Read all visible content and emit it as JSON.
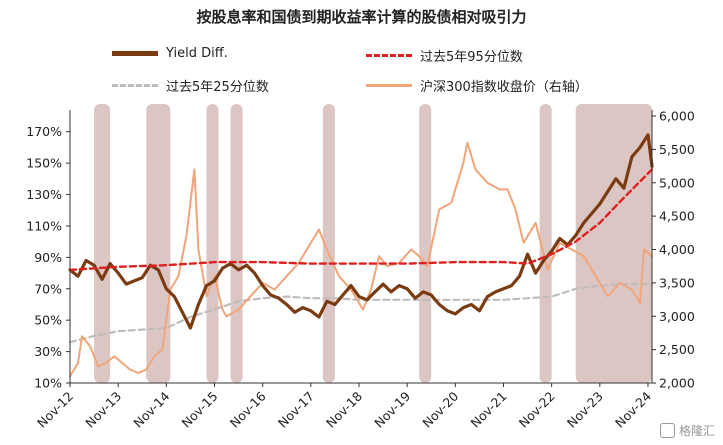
{
  "colors": {
    "yield_diff": "#7b3b12",
    "p95": "#e02020",
    "p25": "#c0bcbc",
    "csi300": "#f0a57a",
    "shade": "#dcc6c4",
    "text": "#222222"
  },
  "watermark": "格隆汇",
  "chart_data": {
    "type": "line",
    "title": "按股息率和国债到期收益率计算的股债相对吸引力",
    "xlabel": "",
    "ylabel": "",
    "ylabel_right": "",
    "x_tick_labels": [
      "Nov-12",
      "Nov-13",
      "Nov-14",
      "Nov-15",
      "Nov-16",
      "Nov-17",
      "Nov-18",
      "Nov-19",
      "Nov-20",
      "Nov-21",
      "Nov-22",
      "Nov-23",
      "Nov-24"
    ],
    "x_range": [
      "2012-11",
      "2024-12"
    ],
    "y_left_ticks": [
      "10%",
      "30%",
      "50%",
      "70%",
      "90%",
      "110%",
      "130%",
      "150%",
      "170%"
    ],
    "y_left_range": [
      10,
      180
    ],
    "y_right_ticks": [
      "2,000",
      "2,500",
      "3,000",
      "3,500",
      "4,000",
      "4,500",
      "5,000",
      "5,500",
      "6,000"
    ],
    "y_right_range": [
      2000,
      6000
    ],
    "grid": false,
    "legend_position": "top",
    "shaded_periods": [
      [
        "2013-05",
        "2013-09"
      ],
      [
        "2014-06",
        "2014-12"
      ],
      [
        "2015-09",
        "2015-12"
      ],
      [
        "2016-03",
        "2016-06"
      ],
      [
        "2018-02",
        "2018-05"
      ],
      [
        "2020-02",
        "2020-05"
      ],
      [
        "2022-08",
        "2022-11"
      ],
      [
        "2023-05",
        "2024-12"
      ]
    ],
    "series": [
      {
        "name": "Yield Diff.",
        "axis": "left",
        "dates": [
          "2012-11",
          "2013-01",
          "2013-03",
          "2013-05",
          "2013-07",
          "2013-09",
          "2013-11",
          "2014-01",
          "2014-03",
          "2014-05",
          "2014-07",
          "2014-09",
          "2014-11",
          "2015-01",
          "2015-03",
          "2015-05",
          "2015-07",
          "2015-09",
          "2015-11",
          "2016-01",
          "2016-03",
          "2016-05",
          "2016-07",
          "2016-09",
          "2016-11",
          "2017-01",
          "2017-03",
          "2017-05",
          "2017-07",
          "2017-09",
          "2017-11",
          "2018-01",
          "2018-03",
          "2018-05",
          "2018-07",
          "2018-09",
          "2018-11",
          "2019-01",
          "2019-03",
          "2019-05",
          "2019-07",
          "2019-09",
          "2019-11",
          "2020-01",
          "2020-03",
          "2020-05",
          "2020-07",
          "2020-09",
          "2020-11",
          "2021-01",
          "2021-03",
          "2021-05",
          "2021-07",
          "2021-09",
          "2021-11",
          "2022-01",
          "2022-03",
          "2022-05",
          "2022-07",
          "2022-09",
          "2022-11",
          "2023-01",
          "2023-03",
          "2023-05",
          "2023-07",
          "2023-09",
          "2023-11",
          "2024-01",
          "2024-03",
          "2024-05",
          "2024-07",
          "2024-09",
          "2024-11",
          "2024-12"
        ],
        "values": [
          82,
          78,
          88,
          85,
          76,
          86,
          80,
          73,
          75,
          77,
          85,
          82,
          70,
          65,
          55,
          45,
          60,
          72,
          75,
          83,
          86,
          82,
          85,
          80,
          72,
          66,
          64,
          60,
          55,
          58,
          56,
          52,
          62,
          60,
          66,
          72,
          65,
          63,
          68,
          73,
          68,
          72,
          70,
          64,
          68,
          66,
          60,
          56,
          54,
          58,
          60,
          56,
          65,
          68,
          70,
          72,
          78,
          92,
          80,
          88,
          94,
          102,
          98,
          104,
          112,
          118,
          124,
          132,
          140,
          134,
          154,
          160,
          168,
          148
        ]
      },
      {
        "name": "过去5年95分位数",
        "axis": "left",
        "dates": [
          "2012-11",
          "2013-11",
          "2014-11",
          "2015-11",
          "2016-11",
          "2017-11",
          "2018-11",
          "2019-11",
          "2020-11",
          "2021-11",
          "2022-05",
          "2022-11",
          "2023-05",
          "2023-11",
          "2024-05",
          "2024-12"
        ],
        "values": [
          82,
          84,
          85,
          87,
          87,
          86,
          86,
          86,
          87,
          87,
          86,
          92,
          100,
          112,
          128,
          146
        ]
      },
      {
        "name": "过去5年25分位数",
        "axis": "left",
        "dates": [
          "2012-11",
          "2013-05",
          "2013-11",
          "2014-05",
          "2014-11",
          "2015-05",
          "2015-11",
          "2016-05",
          "2016-11",
          "2017-05",
          "2017-11",
          "2018-05",
          "2018-11",
          "2019-11",
          "2020-11",
          "2021-11",
          "2022-05",
          "2022-11",
          "2023-05",
          "2023-11",
          "2024-05",
          "2024-12"
        ],
        "values": [
          36,
          40,
          43,
          44,
          45,
          52,
          57,
          62,
          64,
          65,
          64,
          64,
          63,
          63,
          63,
          63,
          64,
          65,
          70,
          72,
          73,
          73
        ]
      },
      {
        "name": "沪深300指数收盘价（右轴）",
        "axis": "right",
        "dates": [
          "2012-11",
          "2013-01",
          "2013-02",
          "2013-04",
          "2013-06",
          "2013-08",
          "2013-10",
          "2013-12",
          "2014-02",
          "2014-04",
          "2014-06",
          "2014-08",
          "2014-10",
          "2014-12",
          "2015-02",
          "2015-04",
          "2015-06",
          "2015-07",
          "2015-09",
          "2015-11",
          "2016-01",
          "2016-02",
          "2016-05",
          "2016-08",
          "2016-11",
          "2017-02",
          "2017-05",
          "2017-08",
          "2017-11",
          "2018-01",
          "2018-03",
          "2018-06",
          "2018-09",
          "2018-12",
          "2019-02",
          "2019-04",
          "2019-06",
          "2019-09",
          "2019-12",
          "2020-02",
          "2020-04",
          "2020-07",
          "2020-10",
          "2021-01",
          "2021-02",
          "2021-04",
          "2021-07",
          "2021-10",
          "2021-12",
          "2022-02",
          "2022-04",
          "2022-07",
          "2022-10",
          "2023-01",
          "2023-04",
          "2023-07",
          "2023-10",
          "2024-01",
          "2024-04",
          "2024-07",
          "2024-09",
          "2024-10",
          "2024-12"
        ],
        "values": [
          2100,
          2300,
          2700,
          2550,
          2250,
          2300,
          2400,
          2300,
          2200,
          2150,
          2200,
          2400,
          2500,
          3400,
          3600,
          4200,
          5200,
          4000,
          3300,
          3600,
          3100,
          3000,
          3100,
          3300,
          3500,
          3400,
          3600,
          3800,
          4100,
          4300,
          4000,
          3600,
          3400,
          3100,
          3400,
          3900,
          3750,
          3800,
          4000,
          3900,
          3750,
          4600,
          4700,
          5300,
          5600,
          5200,
          5000,
          4900,
          4900,
          4600,
          4100,
          4400,
          3700,
          4100,
          4000,
          3900,
          3600,
          3300,
          3500,
          3400,
          3200,
          4000,
          3900
        ]
      }
    ]
  }
}
